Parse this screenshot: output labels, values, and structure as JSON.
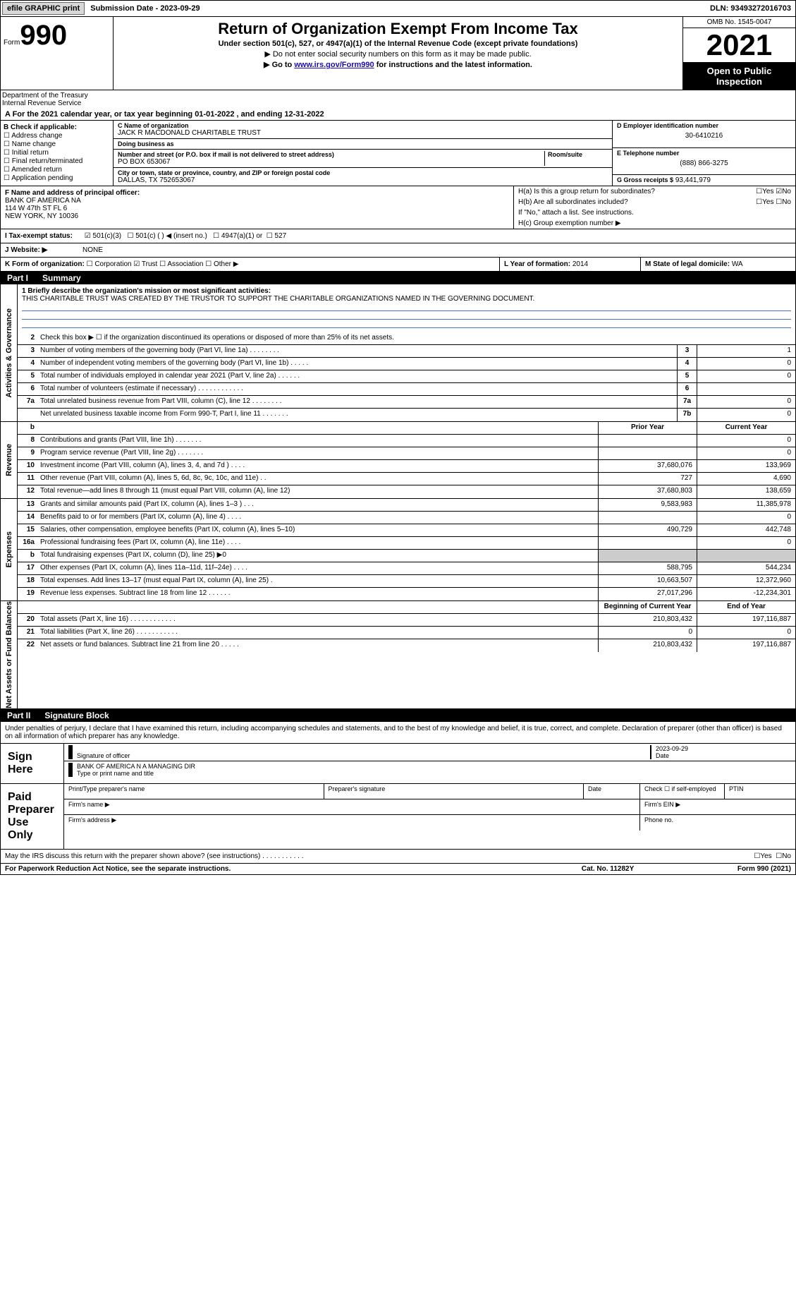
{
  "topbar": {
    "efile": "efile GRAPHIC print",
    "submission": "Submission Date - 2023-09-29",
    "dln_label": "DLN:",
    "dln": "93493272016703"
  },
  "header": {
    "form_word": "Form",
    "form_num": "990",
    "title": "Return of Organization Exempt From Income Tax",
    "subtitle": "Under section 501(c), 527, or 4947(a)(1) of the Internal Revenue Code (except private foundations)",
    "note1": "▶ Do not enter social security numbers on this form as it may be made public.",
    "note2_pre": "▶ Go to ",
    "note2_link": "www.irs.gov/Form990",
    "note2_post": " for instructions and the latest information.",
    "omb": "OMB No. 1545-0047",
    "year": "2021",
    "pub": "Open to Public Inspection",
    "dept": "Department of the Treasury\nInternal Revenue Service"
  },
  "lineA": "A For the 2021 calendar year, or tax year beginning 01-01-2022    , and ending 12-31-2022",
  "sectionB": {
    "label": "B Check if applicable:",
    "items": [
      "Address change",
      "Name change",
      "Initial return",
      "Final return/terminated",
      "Amended return",
      "Application pending"
    ]
  },
  "sectionC": {
    "org_label": "C Name of organization",
    "org": "JACK R MACDONALD CHARITABLE TRUST",
    "dba_label": "Doing business as",
    "dba": "",
    "addr_label": "Number and street (or P.O. box if mail is not delivered to street address)",
    "room_label": "Room/suite",
    "addr": "PO BOX 653067",
    "city_label": "City or town, state or province, country, and ZIP or foreign postal code",
    "city": "DALLAS, TX  752653067"
  },
  "sectionD": {
    "label": "D Employer identification number",
    "value": "30-6410216"
  },
  "sectionE": {
    "label": "E Telephone number",
    "value": "(888) 866-3275"
  },
  "sectionG": {
    "label": "G Gross receipts $",
    "value": "93,441,979"
  },
  "sectionF": {
    "label": "F  Name and address of principal officer:",
    "line1": "BANK OF AMERICA NA",
    "line2": "114 W 47th ST FL 6",
    "line3": "NEW YORK, NY  10036"
  },
  "sectionH": {
    "ha": "H(a)  Is this a group return for subordinates?",
    "hb": "H(b)  Are all subordinates included?",
    "hb_note": "If \"No,\" attach a list. See instructions.",
    "hc": "H(c)  Group exemption number ▶",
    "yes": "Yes",
    "no": "No"
  },
  "sectionI": {
    "label": "I  Tax-exempt status:",
    "o1": "501(c)(3)",
    "o2": "501(c) (  ) ◀ (insert no.)",
    "o3": "4947(a)(1) or",
    "o4": "527"
  },
  "sectionJ": {
    "label": "J  Website: ▶",
    "value": "NONE"
  },
  "sectionK": {
    "label": "K Form of organization:",
    "corp": "Corporation",
    "trust": "Trust",
    "assoc": "Association",
    "other": "Other ▶"
  },
  "sectionL": {
    "label": "L Year of formation:",
    "value": "2014"
  },
  "sectionM": {
    "label": "M State of legal domicile:",
    "value": "WA"
  },
  "part1": {
    "num": "Part I",
    "title": "Summary"
  },
  "summary": {
    "vlabels": [
      "Activities & Governance",
      "Revenue",
      "Expenses",
      "Net Assets or Fund Balances"
    ],
    "line1_label": "1   Briefly describe the organization's mission or most significant activities:",
    "mission": "THIS CHARITABLE TRUST WAS CREATED BY THE TRUSTOR TO SUPPORT THE CHARITABLE ORGANIZATIONS NAMED IN THE GOVERNING DOCUMENT.",
    "line2": "Check this box ▶ ☐ if the organization discontinued its operations or disposed of more than 25% of its net assets.",
    "rows_gov": [
      {
        "n": "3",
        "d": "Number of voting members of the governing body (Part VI, line 1a)   .    .    .    .    .    .    .    .",
        "b": "3",
        "v": "1"
      },
      {
        "n": "4",
        "d": "Number of independent voting members of the governing body (Part VI, line 1b)    .    .    .    .    .",
        "b": "4",
        "v": "0"
      },
      {
        "n": "5",
        "d": "Total number of individuals employed in calendar year 2021 (Part V, line 2a)    .    .    .    .    .    .",
        "b": "5",
        "v": "0"
      },
      {
        "n": "6",
        "d": "Total number of volunteers (estimate if necessary)    .    .    .    .    .    .    .    .    .    .    .    .",
        "b": "6",
        "v": ""
      },
      {
        "n": "7a",
        "d": "Total unrelated business revenue from Part VIII, column (C), line 12    .    .    .    .    .    .    .    .",
        "b": "7a",
        "v": "0"
      },
      {
        "n": "",
        "d": "Net unrelated business taxable income from Form 990-T, Part I, line 11    .    .    .    .    .    .    .",
        "b": "7b",
        "v": "0"
      }
    ],
    "col_hdrs": {
      "py": "Prior Year",
      "cy": "Current Year"
    },
    "rows_rev": [
      {
        "n": "8",
        "d": "Contributions and grants (Part VIII, line 1h)    .    .    .    .    .    .    .",
        "py": "",
        "cy": "0"
      },
      {
        "n": "9",
        "d": "Program service revenue (Part VIII, line 2g)    .    .    .    .    .    .    .",
        "py": "",
        "cy": "0"
      },
      {
        "n": "10",
        "d": "Investment income (Part VIII, column (A), lines 3, 4, and 7d )    .    .    .    .",
        "py": "37,680,076",
        "cy": "133,969"
      },
      {
        "n": "11",
        "d": "Other revenue (Part VIII, column (A), lines 5, 6d, 8c, 9c, 10c, and 11e)    .    .",
        "py": "727",
        "cy": "4,690"
      },
      {
        "n": "12",
        "d": "Total revenue—add lines 8 through 11 (must equal Part VIII, column (A), line 12)",
        "py": "37,680,803",
        "cy": "138,659"
      }
    ],
    "rows_exp": [
      {
        "n": "13",
        "d": "Grants and similar amounts paid (Part IX, column (A), lines 1–3 )    .    .    .",
        "py": "9,583,983",
        "cy": "11,385,978"
      },
      {
        "n": "14",
        "d": "Benefits paid to or for members (Part IX, column (A), line 4)    .    .    .    .",
        "py": "",
        "cy": "0"
      },
      {
        "n": "15",
        "d": "Salaries, other compensation, employee benefits (Part IX, column (A), lines 5–10)",
        "py": "490,729",
        "cy": "442,748"
      },
      {
        "n": "16a",
        "d": "Professional fundraising fees (Part IX, column (A), line 11e)    .    .    .    .",
        "py": "",
        "cy": "0"
      },
      {
        "n": "b",
        "d": "Total fundraising expenses (Part IX, column (D), line 25) ▶0",
        "py": "grey",
        "cy": "grey"
      },
      {
        "n": "17",
        "d": "Other expenses (Part IX, column (A), lines 11a–11d, 11f–24e)    .    .    .    .",
        "py": "588,795",
        "cy": "544,234"
      },
      {
        "n": "18",
        "d": "Total expenses. Add lines 13–17 (must equal Part IX, column (A), line 25)    .",
        "py": "10,663,507",
        "cy": "12,372,960"
      },
      {
        "n": "19",
        "d": "Revenue less expenses. Subtract line 18 from line 12    .    .    .    .    .    .",
        "py": "27,017,296",
        "cy": "-12,234,301"
      }
    ],
    "col_hdrs2": {
      "by": "Beginning of Current Year",
      "ey": "End of Year"
    },
    "rows_net": [
      {
        "n": "20",
        "d": "Total assets (Part X, line 16)    .    .    .    .    .    .    .    .    .    .    .    .",
        "py": "210,803,432",
        "cy": "197,116,887"
      },
      {
        "n": "21",
        "d": "Total liabilities (Part X, line 26)    .    .    .    .    .    .    .    .    .    .    .",
        "py": "0",
        "cy": "0"
      },
      {
        "n": "22",
        "d": "Net assets or fund balances. Subtract line 21 from line 20    .    .    .    .    .",
        "py": "210,803,432",
        "cy": "197,116,887"
      }
    ]
  },
  "part2": {
    "num": "Part II",
    "title": "Signature Block"
  },
  "sig": {
    "intro": "Under penalties of perjury, I declare that I have examined this return, including accompanying schedules and statements, and to the best of my knowledge and belief, it is true, correct, and complete. Declaration of preparer (other than officer) is based on all information of which preparer has any knowledge.",
    "sign_here": "Sign Here",
    "sig_label": "Signature of officer",
    "date_val": "2023-09-29",
    "date_label": "Date",
    "name": "BANK OF AMERICA N A  MANAGING DIR",
    "name_label": "Type or print name and title",
    "paid": "Paid Preparer Use Only",
    "p_name": "Print/Type preparer's name",
    "p_sig": "Preparer's signature",
    "p_date": "Date",
    "p_check": "Check ☐ if self-employed",
    "p_ptin": "PTIN",
    "p_firm": "Firm's name   ▶",
    "p_ein": "Firm's EIN ▶",
    "p_addr": "Firm's address ▶",
    "p_phone": "Phone no."
  },
  "discuss": {
    "q": "May the IRS discuss this return with the preparer shown above? (see instructions)    .    .    .    .    .    .    .    .    .    .    .",
    "yes": "Yes",
    "no": "No"
  },
  "footer": {
    "left": "For Paperwork Reduction Act Notice, see the separate instructions.",
    "mid": "Cat. No. 11282Y",
    "right": "Form 990 (2021)"
  }
}
